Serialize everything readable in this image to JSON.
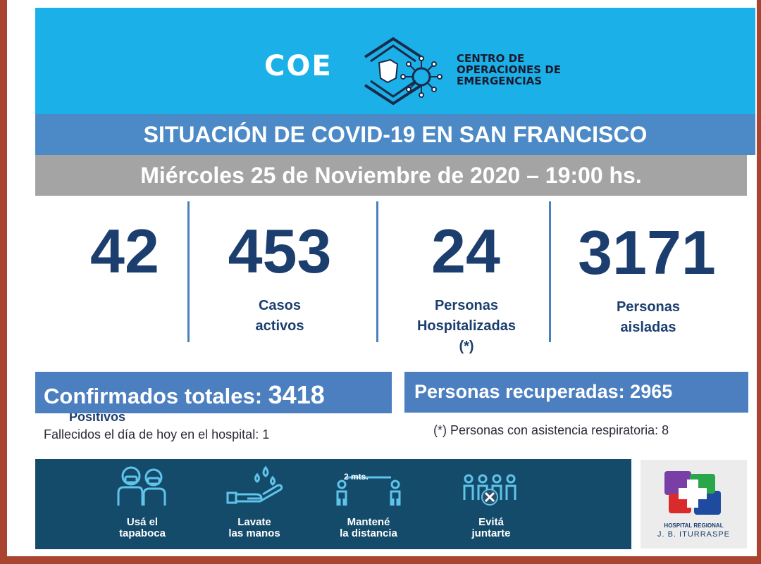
{
  "header": {
    "logo_word": "COE",
    "org_line1": "CENTRO DE",
    "org_line2": "OPERACIONES DE",
    "org_line3": "EMERGENCIAS"
  },
  "title": "SITUACIÓN DE COVID-19 EN SAN FRANCISCO",
  "date": "Miércoles 25 de Noviembre de 2020 – 19:00 hs.",
  "stats": [
    {
      "value": "42",
      "label_line1": "Positivos",
      "label_line2": ""
    },
    {
      "value": "453",
      "label_line1": "Casos",
      "label_line2": "activos"
    },
    {
      "value": "24",
      "label_line1": "Personas",
      "label_line2": "Hospitalizadas",
      "label_line3": "(*)"
    },
    {
      "value": "3171",
      "label_line1": "Personas",
      "label_line2": "aisladas"
    }
  ],
  "confirmed": {
    "label": "Confirmados totales:",
    "value": "3418"
  },
  "recovered": {
    "label": "Personas recuperadas:",
    "value": "2965"
  },
  "notes": {
    "deceased": "Fallecidos el día de hoy en el hospital: 1",
    "respiratory": "(*) Personas con asistencia respiratoria: 8"
  },
  "prevention": {
    "distance_tag": "2 mts.",
    "items": [
      {
        "icon": "masked-people-icon",
        "line1": "Usá el",
        "line2": "tapaboca"
      },
      {
        "icon": "hand-washing-icon",
        "line1": "Lavate",
        "line2": "las manos"
      },
      {
        "icon": "social-distance-icon",
        "line1": "Mantené",
        "line2": "la distancia"
      },
      {
        "icon": "no-gathering-icon",
        "line1": "Evitá",
        "line2": "juntarte"
      }
    ]
  },
  "hospital": {
    "name_line1": "HOSPITAL REGIONAL",
    "name_line2": "J. B. ITURRASPE"
  },
  "colors": {
    "banner": "#1bb1e8",
    "title_bar": "#4c8ac7",
    "date_bar": "#a4a4a4",
    "stat_text": "#1c3e6e",
    "prevention_bg": "#144b6b"
  }
}
